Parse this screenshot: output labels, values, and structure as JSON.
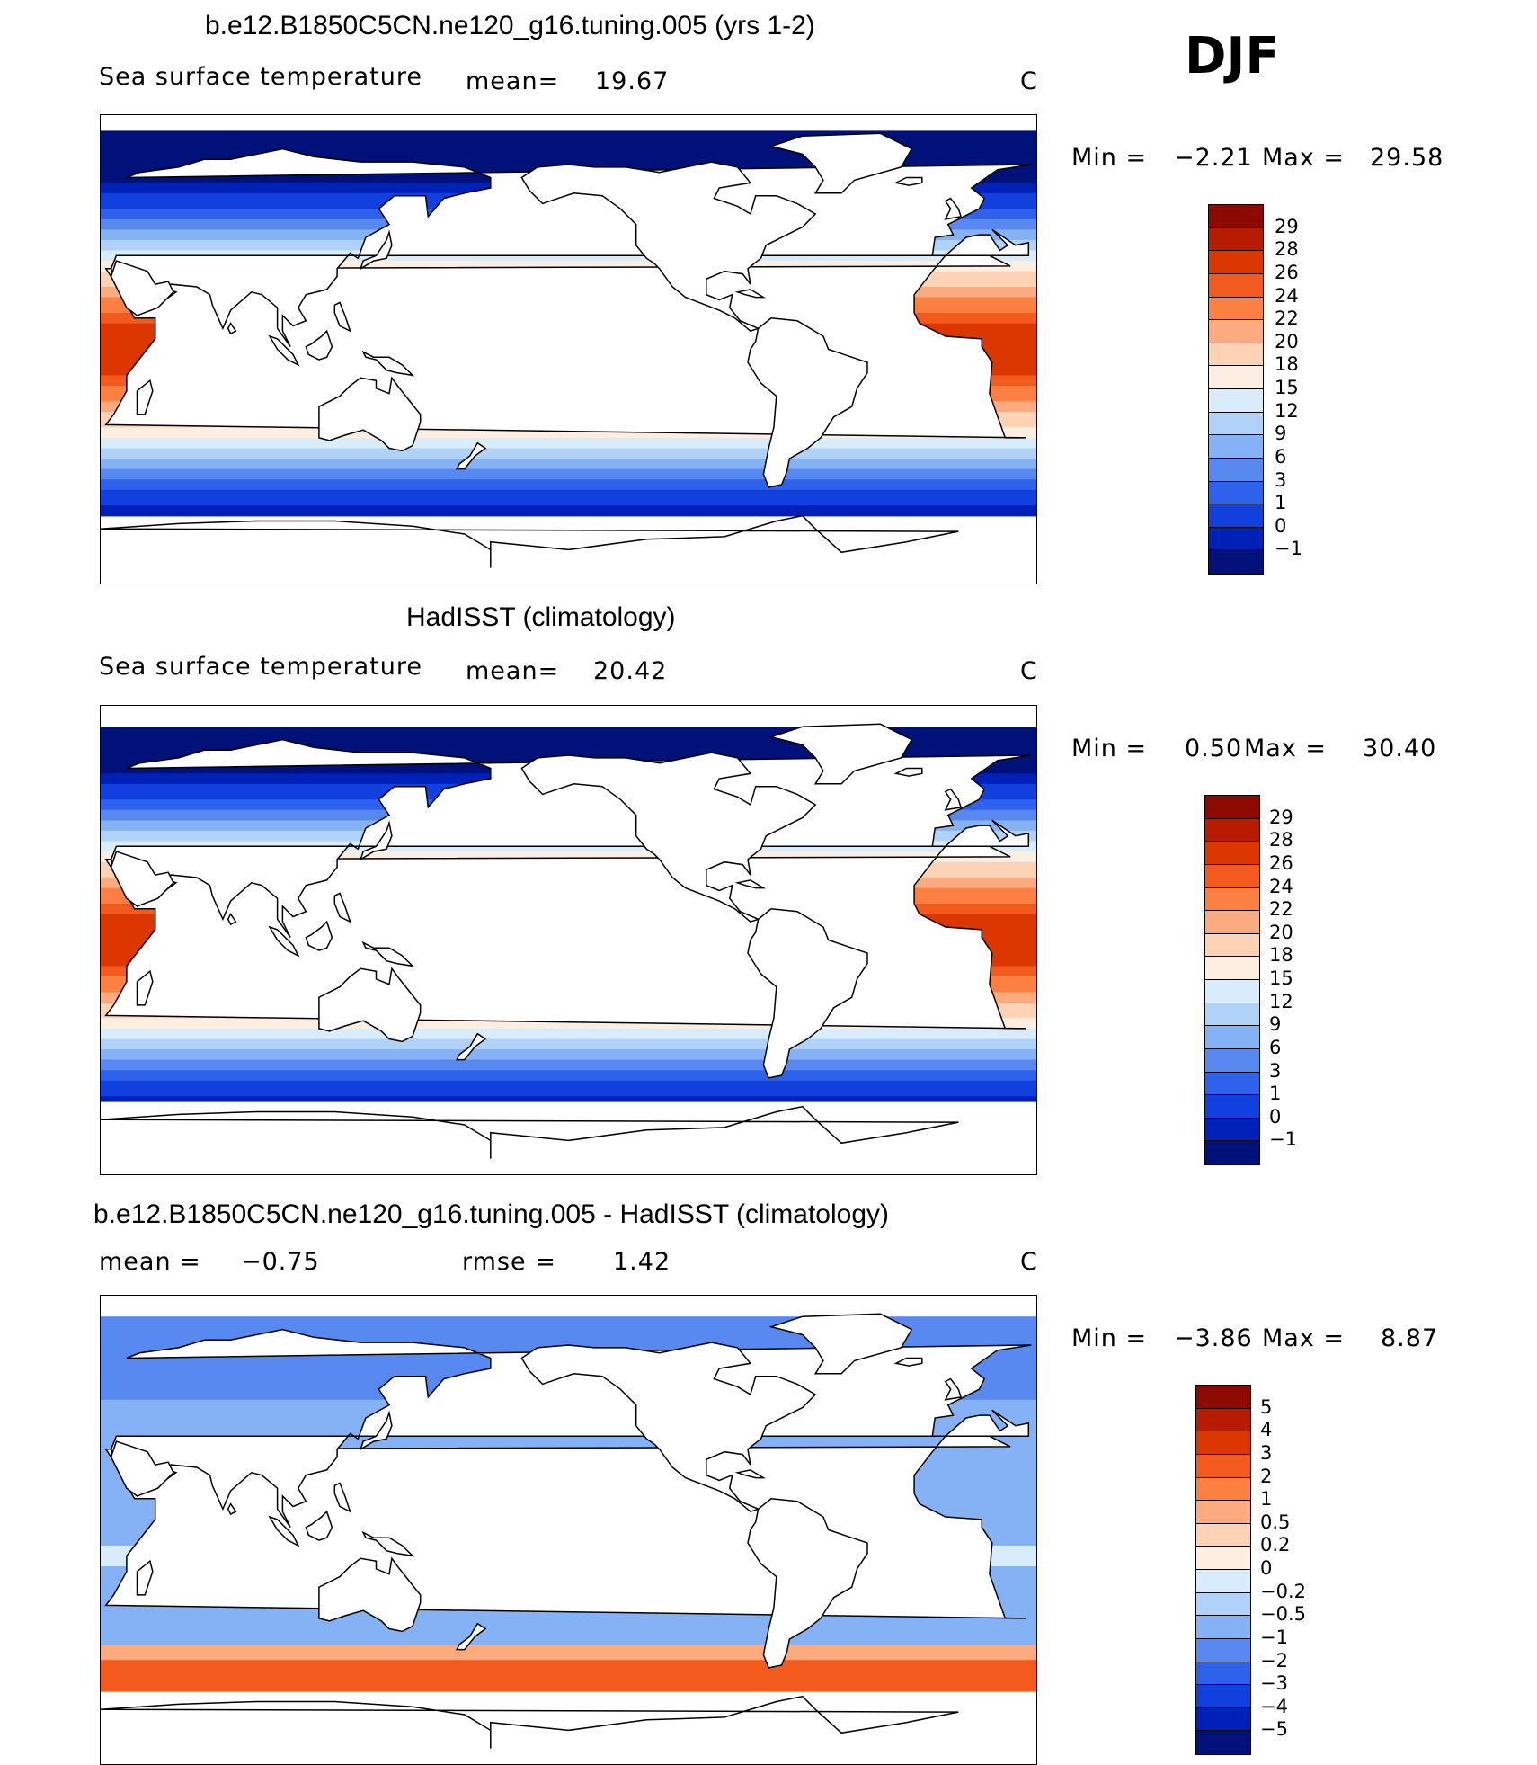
{
  "season": "DJF",
  "panels": [
    {
      "title": "b.e12.B1850C5CN.ne120_g16.tuning.005 (yrs 1-2)",
      "left_label": "Sea surface temperature",
      "mid_label": "mean=",
      "mid_value": "19.67",
      "unit": "C",
      "min_label": "Min =",
      "min_value": "−2.21",
      "max_label": "Max =",
      "max_value": "29.58",
      "kind": "model"
    },
    {
      "title": "HadISST (climatology)",
      "left_label": "Sea surface temperature",
      "mid_label": "mean=",
      "mid_value": "20.42",
      "unit": "C",
      "min_label": "Min =",
      "min_value": "0.50",
      "max_label": "Max =",
      "max_value": "30.40",
      "kind": "obs"
    },
    {
      "title": "b.e12.B1850C5CN.ne120_g16.tuning.005 - HadISST (climatology)",
      "left_label": "mean =",
      "left_value": "−0.75",
      "mid_label": "rmse =",
      "mid_value": "1.42",
      "unit": "C",
      "min_label": "Min =",
      "min_value": "−3.86",
      "max_label": "Max =",
      "max_value": "8.87",
      "kind": "diff"
    }
  ],
  "chart_data": [
    {
      "type": "heatmap",
      "title": "b.e12.B1850C5CN.ne120_g16.tuning.005 (yrs 1-2)",
      "variable": "Sea surface temperature",
      "units": "C",
      "mean": 19.67,
      "min": -2.21,
      "max": 29.58,
      "levels": [
        "29",
        "28",
        "26",
        "24",
        "22",
        "20",
        "18",
        "15",
        "12",
        "9",
        "6",
        "3",
        "1",
        "0",
        "−1"
      ],
      "colors": [
        "#8c0a00",
        "#b81c00",
        "#dc3700",
        "#f25a1e",
        "#fb8042",
        "#fcaa7f",
        "#fdd2b5",
        "#fdeee1",
        "#d9ecfb",
        "#b1d2f8",
        "#85b1f5",
        "#5889f0",
        "#2f62ec",
        "#1240de",
        "#0021b8",
        "#00127a"
      ]
    },
    {
      "type": "heatmap",
      "title": "HadISST (climatology)",
      "variable": "Sea surface temperature",
      "units": "C",
      "mean": 20.42,
      "min": 0.5,
      "max": 30.4,
      "levels": [
        "29",
        "28",
        "26",
        "24",
        "22",
        "20",
        "18",
        "15",
        "12",
        "9",
        "6",
        "3",
        "1",
        "0",
        "−1"
      ],
      "colors": [
        "#8c0a00",
        "#b81c00",
        "#dc3700",
        "#f25a1e",
        "#fb8042",
        "#fcaa7f",
        "#fdd2b5",
        "#fdeee1",
        "#d9ecfb",
        "#b1d2f8",
        "#85b1f5",
        "#5889f0",
        "#2f62ec",
        "#1240de",
        "#0021b8",
        "#00127a"
      ]
    },
    {
      "type": "heatmap",
      "title": "b.e12.B1850C5CN.ne120_g16.tuning.005 - HadISST (climatology)",
      "units": "C",
      "mean": -0.75,
      "rmse": 1.42,
      "min": -3.86,
      "max": 8.87,
      "levels": [
        "5",
        "4",
        "3",
        "2",
        "1",
        "0.5",
        "0.2",
        "0",
        "−0.2",
        "−0.5",
        "−1",
        "−2",
        "−3",
        "−4",
        "−5"
      ],
      "colors": [
        "#8c0a00",
        "#b81c00",
        "#dc3700",
        "#f25a1e",
        "#fb8042",
        "#fcaa7f",
        "#fdd2b5",
        "#fdeee1",
        "#d9ecfb",
        "#b1d2f8",
        "#85b1f5",
        "#5889f0",
        "#2f62ec",
        "#1240de",
        "#0021b8",
        "#00127a"
      ]
    }
  ]
}
